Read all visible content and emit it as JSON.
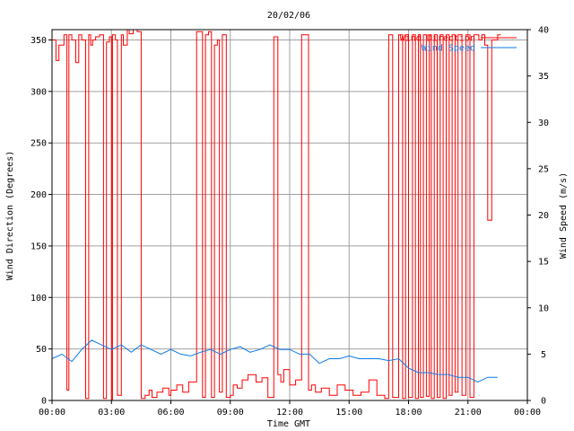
{
  "chart_data": {
    "type": "line",
    "title": "20/02/06",
    "xlabel": "Time GMT",
    "ylabel_left": "Wind Direction (Degrees)",
    "ylabel_right": "Wind Speed (m/s)",
    "x_ticks": [
      "00:00",
      "03:00",
      "06:00",
      "09:00",
      "12:00",
      "15:00",
      "18:00",
      "21:00",
      "00:00"
    ],
    "x_range_hours": [
      0,
      24
    ],
    "y_left_ticks": [
      "0",
      "50",
      "100",
      "150",
      "200",
      "250",
      "300",
      "350"
    ],
    "y_left_range": [
      0,
      360
    ],
    "y_right_ticks": [
      "0",
      "5",
      "10",
      "15",
      "20",
      "25",
      "30",
      "35",
      "40"
    ],
    "y_right_range": [
      0,
      40
    ],
    "grid": true,
    "legend_position": "top-right",
    "series": [
      {
        "name": "Wind Direction",
        "axis": "left",
        "color": "#ff0000",
        "step": true,
        "x": [
          0.0,
          0.2,
          0.35,
          0.6,
          0.75,
          0.85,
          1.0,
          1.2,
          1.35,
          1.5,
          1.7,
          1.85,
          1.95,
          2.05,
          2.2,
          2.4,
          2.6,
          2.75,
          2.9,
          3.0,
          3.05,
          3.2,
          3.3,
          3.5,
          3.6,
          3.8,
          3.9,
          4.1,
          4.3,
          4.5,
          4.7,
          4.9,
          5.05,
          5.3,
          5.6,
          5.9,
          6.0,
          6.3,
          6.6,
          6.9,
          7.3,
          7.6,
          7.75,
          7.9,
          8.05,
          8.2,
          8.35,
          8.45,
          8.6,
          8.8,
          9.0,
          9.15,
          9.35,
          9.6,
          9.9,
          10.3,
          10.6,
          10.9,
          11.2,
          11.4,
          11.55,
          11.7,
          12.0,
          12.3,
          12.6,
          12.95,
          13.1,
          13.3,
          13.6,
          14.0,
          14.4,
          14.8,
          15.2,
          15.6,
          16.0,
          16.4,
          16.8,
          17.0,
          17.2,
          17.5,
          17.7,
          17.85,
          18.0,
          18.2,
          18.35,
          18.5,
          18.6,
          18.75,
          18.9,
          19.05,
          19.15,
          19.3,
          19.45,
          19.6,
          19.75,
          19.9,
          20.05,
          20.2,
          20.35,
          20.5,
          20.7,
          20.9,
          21.1,
          21.3,
          21.55,
          21.7,
          21.85,
          22.0,
          22.2,
          22.5
        ],
        "values": [
          350,
          330,
          345,
          355,
          10,
          355,
          350,
          328,
          355,
          350,
          2,
          355,
          345,
          350,
          353,
          355,
          2,
          348,
          353,
          1,
          355,
          350,
          5,
          355,
          345,
          360,
          356,
          360,
          358,
          2,
          5,
          10,
          3,
          8,
          12,
          5,
          10,
          15,
          8,
          18,
          358,
          3,
          355,
          358,
          3,
          345,
          350,
          8,
          355,
          3,
          5,
          15,
          12,
          20,
          25,
          18,
          22,
          3,
          353,
          25,
          18,
          30,
          15,
          20,
          355,
          10,
          15,
          8,
          12,
          5,
          15,
          10,
          5,
          8,
          20,
          5,
          2,
          355,
          3,
          355,
          2,
          355,
          3,
          355,
          2,
          355,
          3,
          355,
          4,
          355,
          2,
          355,
          3,
          355,
          2,
          355,
          5,
          355,
          8,
          355,
          5,
          355,
          3,
          355,
          350,
          355,
          345,
          175,
          350,
          355
        ]
      },
      {
        "name": "Wind Speed",
        "axis": "right",
        "color": "#0a7ae6",
        "step": false,
        "x": [
          0.0,
          0.5,
          1.0,
          1.5,
          2.0,
          2.5,
          3.0,
          3.5,
          4.0,
          4.5,
          5.0,
          5.5,
          6.0,
          6.5,
          7.0,
          7.5,
          8.0,
          8.5,
          9.0,
          9.5,
          10.0,
          10.5,
          11.0,
          11.5,
          12.0,
          12.5,
          13.0,
          13.5,
          14.0,
          14.5,
          15.0,
          15.5,
          16.0,
          16.5,
          17.0,
          17.5,
          18.0,
          18.5,
          19.0,
          19.5,
          20.0,
          20.5,
          21.0,
          21.5,
          22.0,
          22.5
        ],
        "values": [
          4.5,
          5.0,
          4.2,
          5.5,
          6.5,
          6.0,
          5.5,
          6.0,
          5.2,
          6.0,
          5.5,
          5.0,
          5.5,
          5.0,
          4.8,
          5.2,
          5.5,
          5.0,
          5.5,
          5.8,
          5.2,
          5.5,
          6.0,
          5.5,
          5.5,
          5.0,
          5.0,
          4.0,
          4.5,
          4.5,
          4.8,
          4.5,
          4.5,
          4.5,
          4.3,
          4.5,
          3.5,
          3.0,
          3.0,
          2.8,
          2.8,
          2.5,
          2.5,
          2.0,
          2.5,
          2.5
        ]
      }
    ]
  }
}
